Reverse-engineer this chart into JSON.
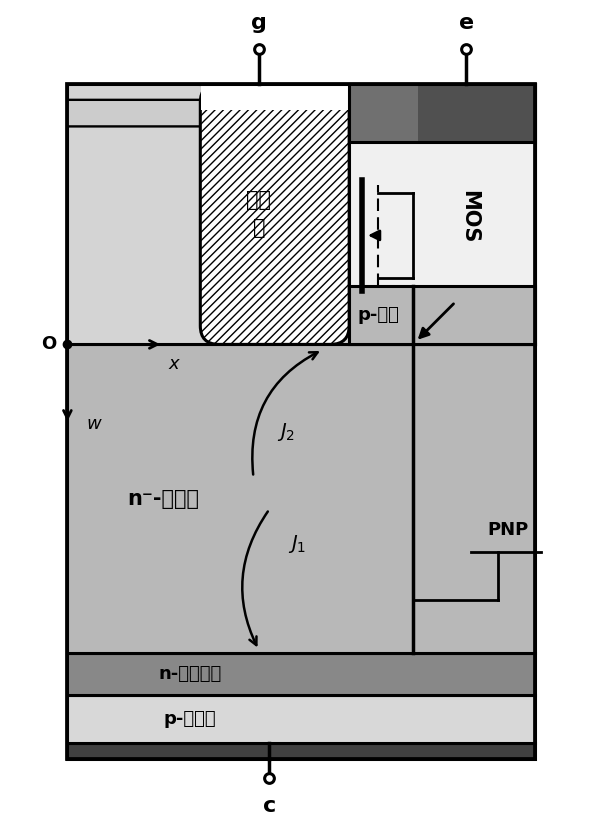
{
  "fig_width": 5.92,
  "fig_height": 8.27,
  "dpi": 100,
  "colors": {
    "very_light_gray": "#e8e8e8",
    "light_gray": "#d4d4d4",
    "drift_gray": "#b8b8b8",
    "field_stop_gray": "#888888",
    "emitter_light": "#d8d8d8",
    "white": "#ffffff",
    "dark_contact1": "#707070",
    "dark_contact2": "#505050",
    "black": "#000000",
    "lead_gray": "#c0c0c0"
  },
  "labels": {
    "g": "g",
    "e": "e",
    "c": "c",
    "trench_gate_line1": "沟槽",
    "trench_gate_line2": "栅",
    "p_base": "p-基区",
    "mos": "MOS",
    "drift": "n⁻-漂移区",
    "field_stop": "n-场截止层",
    "emitter_layer": "p-发射层",
    "PNP": "PNP",
    "O": "O",
    "x_lbl": "x",
    "w_lbl": "w"
  }
}
